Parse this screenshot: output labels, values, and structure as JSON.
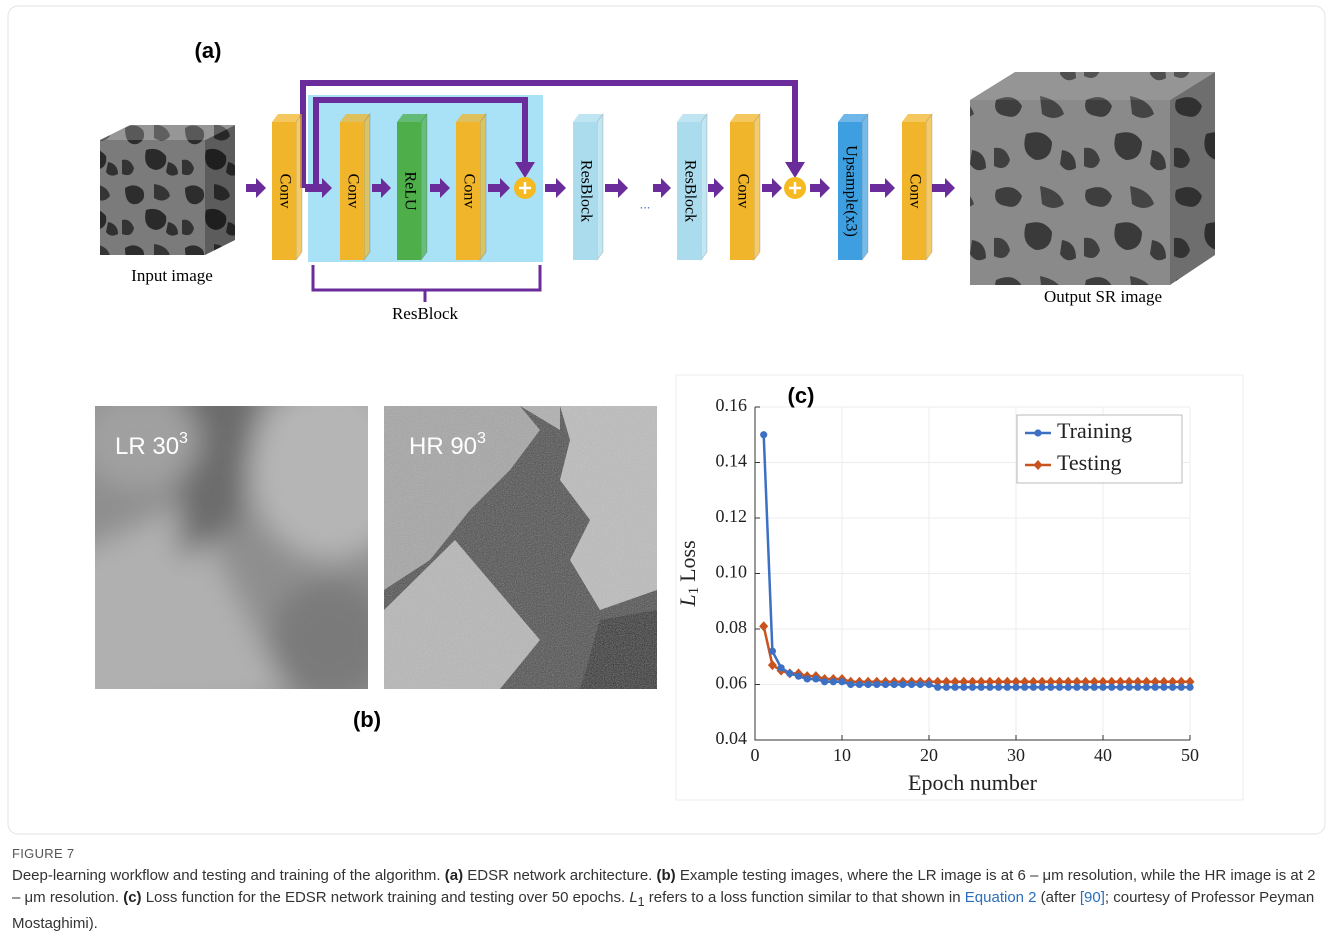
{
  "panel_a": {
    "label": "(a)",
    "blocks": [
      "Conv",
      "Conv",
      "ReLU",
      "Conv",
      "ResBlock",
      "ResBlock",
      "Conv",
      "Upsample(x3)",
      "Conv"
    ],
    "ellipsis": "...",
    "input_label": "Input image",
    "output_label": "Output SR image",
    "resblock_label": "ResBlock"
  },
  "panel_b": {
    "label": "(b)",
    "lr_label": "LR 30",
    "lr_sup": "3",
    "hr_label": "HR 90",
    "hr_sup": "3"
  },
  "chart_data": {
    "type": "line",
    "title": "(c)",
    "xlabel": "Epoch number",
    "ylabel": {
      "symbol": "L",
      "subscript": "1",
      "text": "Loss"
    },
    "x": [
      1,
      2,
      3,
      4,
      5,
      6,
      7,
      8,
      9,
      10,
      11,
      12,
      13,
      14,
      15,
      16,
      17,
      18,
      19,
      20,
      21,
      22,
      23,
      24,
      25,
      26,
      27,
      28,
      29,
      30,
      31,
      32,
      33,
      34,
      35,
      36,
      37,
      38,
      39,
      40,
      41,
      42,
      43,
      44,
      45,
      46,
      47,
      48,
      49,
      50
    ],
    "series": [
      {
        "name": "Training",
        "color": "#3d6fc2",
        "marker": "circle",
        "values": [
          0.15,
          0.072,
          0.066,
          0.064,
          0.063,
          0.062,
          0.062,
          0.061,
          0.061,
          0.061,
          0.06,
          0.06,
          0.06,
          0.06,
          0.06,
          0.06,
          0.06,
          0.06,
          0.06,
          0.06,
          0.059,
          0.059,
          0.059,
          0.059,
          0.059,
          0.059,
          0.059,
          0.059,
          0.059,
          0.059,
          0.059,
          0.059,
          0.059,
          0.059,
          0.059,
          0.059,
          0.059,
          0.059,
          0.059,
          0.059,
          0.059,
          0.059,
          0.059,
          0.059,
          0.059,
          0.059,
          0.059,
          0.059,
          0.059,
          0.059
        ]
      },
      {
        "name": "Testing",
        "color": "#c9531f",
        "marker": "diamond",
        "values": [
          0.081,
          0.067,
          0.065,
          0.064,
          0.064,
          0.063,
          0.063,
          0.062,
          0.062,
          0.062,
          0.061,
          0.061,
          0.061,
          0.061,
          0.061,
          0.061,
          0.061,
          0.061,
          0.061,
          0.061,
          0.061,
          0.061,
          0.061,
          0.061,
          0.061,
          0.061,
          0.061,
          0.061,
          0.061,
          0.061,
          0.061,
          0.061,
          0.061,
          0.061,
          0.061,
          0.061,
          0.061,
          0.061,
          0.061,
          0.061,
          0.061,
          0.061,
          0.061,
          0.061,
          0.061,
          0.061,
          0.061,
          0.061,
          0.061,
          0.061
        ]
      }
    ],
    "xlim": [
      0,
      50
    ],
    "xticks": [
      0,
      10,
      20,
      30,
      40,
      50
    ],
    "ylim": [
      0.04,
      0.16
    ],
    "yticks": [
      0.04,
      0.06,
      0.08,
      {
        "value": 0.1,
        "label": "0.10"
      },
      0.12,
      0.14,
      0.16
    ],
    "legend": "upper right",
    "grid": true
  },
  "caption": {
    "label": "FIGURE 7",
    "parts": [
      "Deep-learning workflow and testing and training of the algorithm. ",
      "(a)",
      " EDSR network architecture. ",
      "(b)",
      " Example testing images, where the LR image is at 6 – μm resolution, while the HR image is at 2 – μm resolution. ",
      "(c)",
      " Loss function for the EDSR network training and testing over 50 epochs. ",
      "L",
      "1",
      " refers to a loss function similar to that shown in ",
      "Equation 2",
      " (after ",
      "[90]",
      "; courtesy of Professor Peyman Mostaghimi)."
    ]
  }
}
